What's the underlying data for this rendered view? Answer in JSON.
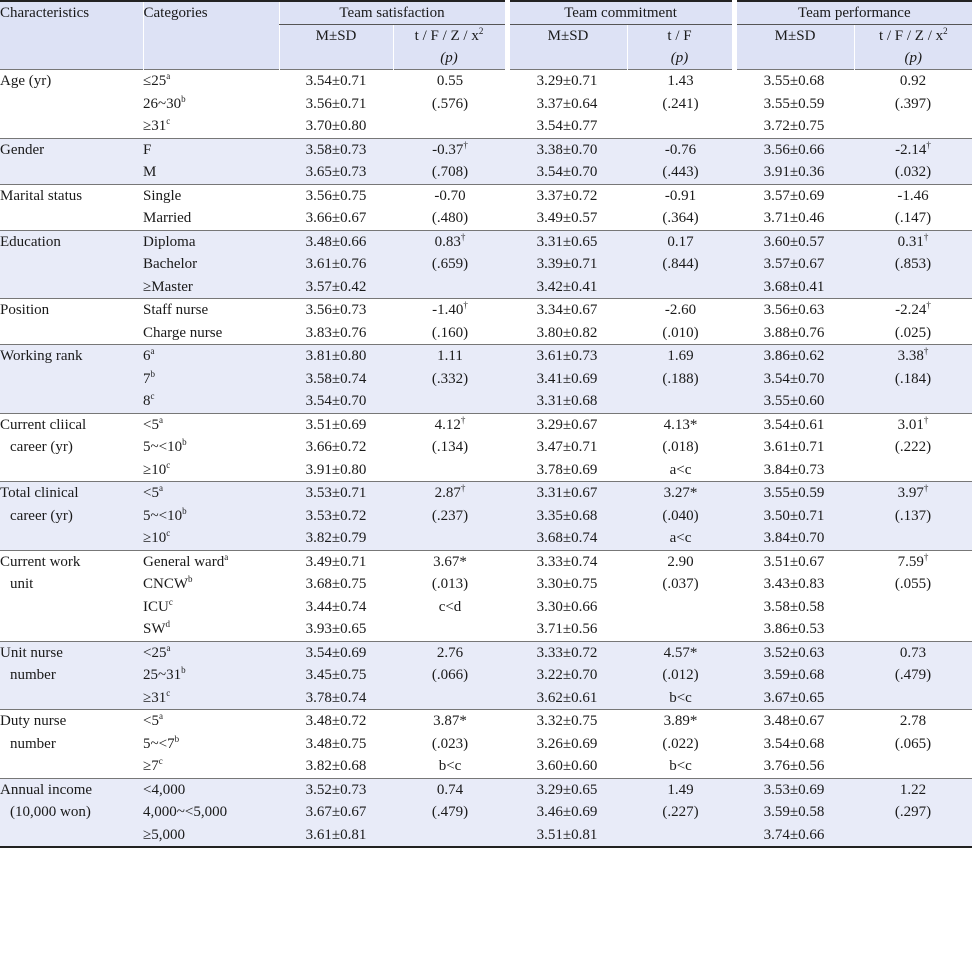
{
  "header": {
    "characteristics": "Characteristics",
    "categories": "Categories",
    "groups": [
      "Team satisfaction",
      "Team commitment",
      "Team performance"
    ],
    "msd": "M±SD",
    "stat_satisfaction_top": "t / F / Z / x",
    "stat_satisfaction_sup": "2",
    "stat_commitment_top": "t / F",
    "stat_performance_top": "t / F / Z / x",
    "stat_performance_sup": "2",
    "p": "(p)"
  },
  "rows": [
    {
      "characteristic": [
        "Age (yr)"
      ],
      "categories": [
        [
          "≤25",
          "a"
        ],
        [
          "26~30",
          "b"
        ],
        [
          "≥31",
          "c"
        ]
      ],
      "satisfaction": {
        "msd": [
          "3.54±0.71",
          "3.56±0.71",
          "3.70±0.80"
        ],
        "stat": [
          [
            "0.55",
            ""
          ],
          [
            "(.576)",
            ""
          ]
        ]
      },
      "commitment": {
        "msd": [
          "3.29±0.71",
          "3.37±0.64",
          "3.54±0.77"
        ],
        "stat": [
          [
            "1.43",
            ""
          ],
          [
            "(.241)",
            ""
          ]
        ]
      },
      "performance": {
        "msd": [
          "3.55±0.68",
          "3.55±0.59",
          "3.72±0.75"
        ],
        "stat": [
          [
            "0.92",
            ""
          ],
          [
            "(.397)",
            ""
          ]
        ]
      }
    },
    {
      "characteristic": [
        "Gender"
      ],
      "categories": [
        [
          "F",
          ""
        ],
        [
          "M",
          ""
        ]
      ],
      "satisfaction": {
        "msd": [
          "3.58±0.73",
          "3.65±0.73"
        ],
        "stat": [
          [
            "-0.37",
            "†"
          ],
          [
            "(.708)",
            ""
          ]
        ]
      },
      "commitment": {
        "msd": [
          "3.38±0.70",
          "3.54±0.70"
        ],
        "stat": [
          [
            "-0.76",
            ""
          ],
          [
            "(.443)",
            ""
          ]
        ]
      },
      "performance": {
        "msd": [
          "3.56±0.66",
          "3.91±0.36"
        ],
        "stat": [
          [
            "-2.14",
            "†"
          ],
          [
            "(.032)",
            ""
          ]
        ]
      }
    },
    {
      "characteristic": [
        "Marital status"
      ],
      "categories": [
        [
          "Single",
          ""
        ],
        [
          "Married",
          ""
        ]
      ],
      "satisfaction": {
        "msd": [
          "3.56±0.75",
          "3.66±0.67"
        ],
        "stat": [
          [
            "-0.70",
            ""
          ],
          [
            "(.480)",
            ""
          ]
        ]
      },
      "commitment": {
        "msd": [
          "3.37±0.72",
          "3.49±0.57"
        ],
        "stat": [
          [
            "-0.91",
            ""
          ],
          [
            "(.364)",
            ""
          ]
        ]
      },
      "performance": {
        "msd": [
          "3.57±0.69",
          "3.71±0.46"
        ],
        "stat": [
          [
            "-1.46",
            ""
          ],
          [
            "(.147)",
            ""
          ]
        ]
      }
    },
    {
      "characteristic": [
        "Education"
      ],
      "categories": [
        [
          "Diploma",
          ""
        ],
        [
          "Bachelor",
          ""
        ],
        [
          "≥Master",
          ""
        ]
      ],
      "satisfaction": {
        "msd": [
          "3.48±0.66",
          "3.61±0.76",
          "3.57±0.42"
        ],
        "stat": [
          [
            "0.83",
            "†"
          ],
          [
            "(.659)",
            ""
          ]
        ]
      },
      "commitment": {
        "msd": [
          "3.31±0.65",
          "3.39±0.71",
          "3.42±0.41"
        ],
        "stat": [
          [
            "0.17",
            ""
          ],
          [
            "(.844)",
            ""
          ]
        ]
      },
      "performance": {
        "msd": [
          "3.60±0.57",
          "3.57±0.67",
          "3.68±0.41"
        ],
        "stat": [
          [
            "0.31",
            "†"
          ],
          [
            "(.853)",
            ""
          ]
        ]
      }
    },
    {
      "characteristic": [
        "Position"
      ],
      "categories": [
        [
          "Staff nurse",
          ""
        ],
        [
          "Charge nurse",
          ""
        ]
      ],
      "satisfaction": {
        "msd": [
          "3.56±0.73",
          "3.83±0.76"
        ],
        "stat": [
          [
            "-1.40",
            "†"
          ],
          [
            "(.160)",
            ""
          ]
        ]
      },
      "commitment": {
        "msd": [
          "3.34±0.67",
          "3.80±0.82"
        ],
        "stat": [
          [
            "-2.60",
            ""
          ],
          [
            "(.010)",
            ""
          ]
        ]
      },
      "performance": {
        "msd": [
          "3.56±0.63",
          "3.88±0.76"
        ],
        "stat": [
          [
            "-2.24",
            "†"
          ],
          [
            "(.025)",
            ""
          ]
        ]
      }
    },
    {
      "characteristic": [
        "Working rank"
      ],
      "categories": [
        [
          "6",
          "a"
        ],
        [
          "7",
          "b"
        ],
        [
          "8",
          "c"
        ]
      ],
      "satisfaction": {
        "msd": [
          "3.81±0.80",
          "3.58±0.74",
          "3.54±0.70"
        ],
        "stat": [
          [
            "1.11",
            ""
          ],
          [
            "(.332)",
            ""
          ]
        ]
      },
      "commitment": {
        "msd": [
          "3.61±0.73",
          "3.41±0.69",
          "3.31±0.68"
        ],
        "stat": [
          [
            "1.69",
            ""
          ],
          [
            "(.188)",
            ""
          ]
        ]
      },
      "performance": {
        "msd": [
          "3.86±0.62",
          "3.54±0.70",
          "3.55±0.60"
        ],
        "stat": [
          [
            "3.38",
            "†"
          ],
          [
            "(.184)",
            ""
          ]
        ]
      }
    },
    {
      "characteristic": [
        "Current cliical",
        "career (yr)"
      ],
      "categories": [
        [
          "<5",
          "a"
        ],
        [
          "5~<10",
          "b"
        ],
        [
          "≥10",
          "c"
        ]
      ],
      "satisfaction": {
        "msd": [
          "3.51±0.69",
          "3.66±0.72",
          "3.91±0.80"
        ],
        "stat": [
          [
            "4.12",
            "†"
          ],
          [
            "(.134)",
            ""
          ]
        ]
      },
      "commitment": {
        "msd": [
          "3.29±0.67",
          "3.47±0.71",
          "3.78±0.69"
        ],
        "stat": [
          [
            "4.13*",
            ""
          ],
          [
            "(.018)",
            ""
          ],
          [
            "a<c",
            ""
          ]
        ]
      },
      "performance": {
        "msd": [
          "3.54±0.61",
          "3.61±0.71",
          "3.84±0.73"
        ],
        "stat": [
          [
            "3.01",
            "†"
          ],
          [
            "(.222)",
            ""
          ]
        ]
      }
    },
    {
      "characteristic": [
        "Total clinical",
        "career (yr)"
      ],
      "categories": [
        [
          "<5",
          "a"
        ],
        [
          "5~<10",
          "b"
        ],
        [
          "≥10",
          "c"
        ]
      ],
      "satisfaction": {
        "msd": [
          "3.53±0.71",
          "3.53±0.72",
          "3.82±0.79"
        ],
        "stat": [
          [
            "2.87",
            "†"
          ],
          [
            "(.237)",
            ""
          ]
        ]
      },
      "commitment": {
        "msd": [
          "3.31±0.67",
          "3.35±0.68",
          "3.68±0.74"
        ],
        "stat": [
          [
            "3.27*",
            ""
          ],
          [
            "(.040)",
            ""
          ],
          [
            "a<c",
            ""
          ]
        ]
      },
      "performance": {
        "msd": [
          "3.55±0.59",
          "3.50±0.71",
          "3.84±0.70"
        ],
        "stat": [
          [
            "3.97",
            "†"
          ],
          [
            "(.137)",
            ""
          ]
        ]
      }
    },
    {
      "characteristic": [
        "Current work",
        "unit"
      ],
      "categories": [
        [
          "General ward",
          "a"
        ],
        [
          "CNCW",
          "b"
        ],
        [
          "ICU",
          "c"
        ],
        [
          "SW",
          "d"
        ]
      ],
      "satisfaction": {
        "msd": [
          "3.49±0.71",
          "3.68±0.75",
          "3.44±0.74",
          "3.93±0.65"
        ],
        "stat": [
          [
            "3.67*",
            ""
          ],
          [
            "(.013)",
            ""
          ],
          [
            "c<d",
            ""
          ]
        ]
      },
      "commitment": {
        "msd": [
          "3.33±0.74",
          "3.30±0.75",
          "3.30±0.66",
          "3.71±0.56"
        ],
        "stat": [
          [
            "2.90",
            ""
          ],
          [
            "(.037)",
            ""
          ]
        ]
      },
      "performance": {
        "msd": [
          "3.51±0.67",
          "3.43±0.83",
          "3.58±0.58",
          "3.86±0.53"
        ],
        "stat": [
          [
            "7.59",
            "†"
          ],
          [
            "(.055)",
            ""
          ]
        ]
      }
    },
    {
      "characteristic": [
        "Unit nurse",
        "number"
      ],
      "categories": [
        [
          "<25",
          "a"
        ],
        [
          "25~31",
          "b"
        ],
        [
          "≥31",
          "c"
        ]
      ],
      "satisfaction": {
        "msd": [
          "3.54±0.69",
          "3.45±0.75",
          "3.78±0.74"
        ],
        "stat": [
          [
            "2.76",
            ""
          ],
          [
            "(.066)",
            ""
          ]
        ]
      },
      "commitment": {
        "msd": [
          "3.33±0.72",
          "3.22±0.70",
          "3.62±0.61"
        ],
        "stat": [
          [
            "4.57*",
            ""
          ],
          [
            "(.012)",
            ""
          ],
          [
            "b<c",
            ""
          ]
        ]
      },
      "performance": {
        "msd": [
          "3.52±0.63",
          "3.59±0.68",
          "3.67±0.65"
        ],
        "stat": [
          [
            "0.73",
            ""
          ],
          [
            "(.479)",
            ""
          ]
        ]
      }
    },
    {
      "characteristic": [
        "Duty nurse",
        "number"
      ],
      "categories": [
        [
          "<5",
          "a"
        ],
        [
          "5~<7",
          "b"
        ],
        [
          "≥7",
          "c"
        ]
      ],
      "satisfaction": {
        "msd": [
          "3.48±0.72",
          "3.48±0.75",
          "3.82±0.68"
        ],
        "stat": [
          [
            "3.87*",
            ""
          ],
          [
            "(.023)",
            ""
          ],
          [
            "b<c",
            ""
          ]
        ]
      },
      "commitment": {
        "msd": [
          "3.32±0.75",
          "3.26±0.69",
          "3.60±0.60"
        ],
        "stat": [
          [
            "3.89*",
            ""
          ],
          [
            "(.022)",
            ""
          ],
          [
            "b<c",
            ""
          ]
        ]
      },
      "performance": {
        "msd": [
          "3.48±0.67",
          "3.54±0.68",
          "3.76±0.56"
        ],
        "stat": [
          [
            "2.78",
            ""
          ],
          [
            "(.065)",
            ""
          ]
        ]
      }
    },
    {
      "characteristic": [
        "Annual income",
        "(10,000 won)"
      ],
      "categories": [
        [
          "<4,000",
          ""
        ],
        [
          "4,000~<5,000",
          ""
        ],
        [
          "≥5,000",
          ""
        ]
      ],
      "satisfaction": {
        "msd": [
          "3.52±0.73",
          "3.67±0.67",
          "3.61±0.81"
        ],
        "stat": [
          [
            "0.74",
            ""
          ],
          [
            "(.479)",
            ""
          ]
        ]
      },
      "commitment": {
        "msd": [
          "3.29±0.65",
          "3.46±0.69",
          "3.51±0.81"
        ],
        "stat": [
          [
            "1.49",
            ""
          ],
          [
            "(.227)",
            ""
          ]
        ]
      },
      "performance": {
        "msd": [
          "3.53±0.69",
          "3.59±0.58",
          "3.74±0.66"
        ],
        "stat": [
          [
            "1.22",
            ""
          ],
          [
            "(.297)",
            ""
          ]
        ]
      }
    }
  ]
}
